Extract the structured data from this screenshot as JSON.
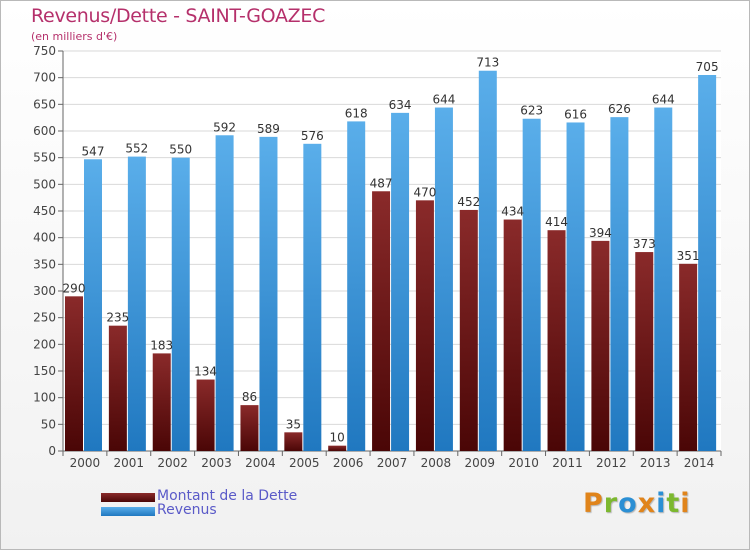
{
  "title": "Revenus/Dette - SAINT-GOAZEC",
  "subtitle": "(en milliers d'€)",
  "logo_text": "Proxiti",
  "colors": {
    "title": "#b5306b",
    "dette": "#7a1a1a",
    "revenus": "#3d97dc",
    "legend_text": "#5a5ac8"
  },
  "legend": {
    "dette_label": "Montant de la Dette",
    "revenus_label": "Revenus"
  },
  "chart_data": {
    "type": "bar",
    "title": "Revenus/Dette - SAINT-GOAZEC",
    "subtitle": "(en milliers d'€)",
    "xlabel": "",
    "ylabel": "",
    "ylim": [
      0,
      750
    ],
    "yticks": [
      0,
      50,
      100,
      150,
      200,
      250,
      300,
      350,
      400,
      450,
      500,
      550,
      600,
      650,
      700,
      750
    ],
    "grid": true,
    "legend_position": "bottom-left",
    "categories": [
      "2000",
      "2001",
      "2002",
      "2003",
      "2004",
      "2005",
      "2006",
      "2007",
      "2008",
      "2009",
      "2010",
      "2011",
      "2012",
      "2013",
      "2014"
    ],
    "series": [
      {
        "name": "Montant de la Dette",
        "values": [
          290,
          235,
          183,
          134,
          86,
          35,
          10,
          487,
          470,
          452,
          434,
          414,
          394,
          373,
          351
        ]
      },
      {
        "name": "Revenus",
        "values": [
          547,
          552,
          550,
          592,
          589,
          576,
          618,
          634,
          644,
          713,
          623,
          616,
          626,
          644,
          705
        ]
      }
    ]
  }
}
